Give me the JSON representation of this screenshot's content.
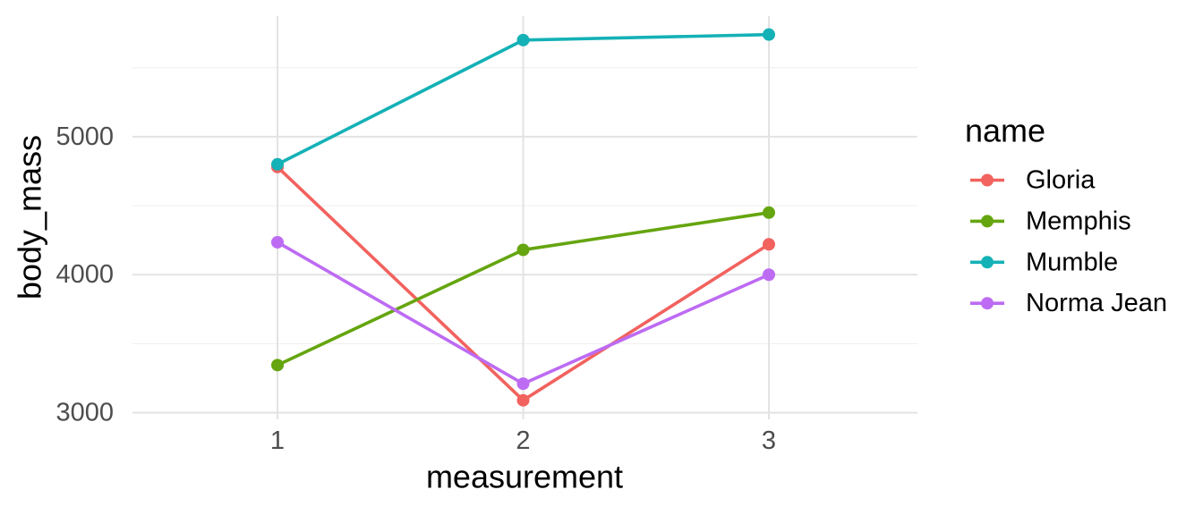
{
  "figure": {
    "type": "ggplot-style line chart",
    "background_color": "#FFFFFF"
  },
  "chart_data": {
    "type": "line",
    "title": "",
    "xlabel": "measurement",
    "ylabel": "body_mass",
    "x": [
      1,
      2,
      3
    ],
    "x_tick_labels": [
      "1",
      "2",
      "3"
    ],
    "y_ticks": [
      3000,
      4000,
      5000
    ],
    "y_tick_labels": [
      "3000",
      "4000",
      "5000"
    ],
    "y_minor_gridlines": [
      3500,
      4500,
      5500
    ],
    "ylim": [
      2952,
      5874
    ],
    "grid": true,
    "legend_position": "right",
    "legend_title": "name",
    "series": [
      {
        "name": "Gloria",
        "color": "#F2625E",
        "values": [
          4780,
          3090,
          4220
        ]
      },
      {
        "name": "Memphis",
        "color": "#65A50F",
        "values": [
          3345,
          4180,
          4450
        ]
      },
      {
        "name": "Mumble",
        "color": "#14B1B6",
        "values": [
          4800,
          5700,
          5740
        ]
      },
      {
        "name": "Norma Jean",
        "color": "#BD6BF3",
        "values": [
          4235,
          3210,
          4000
        ]
      }
    ],
    "colors": {
      "tick_label": "#4D4D4D",
      "axis_title": "#000000",
      "legend_text": "#000000",
      "grid_major": "#E3E3E3",
      "grid_minor": "#F0F0F0"
    }
  }
}
